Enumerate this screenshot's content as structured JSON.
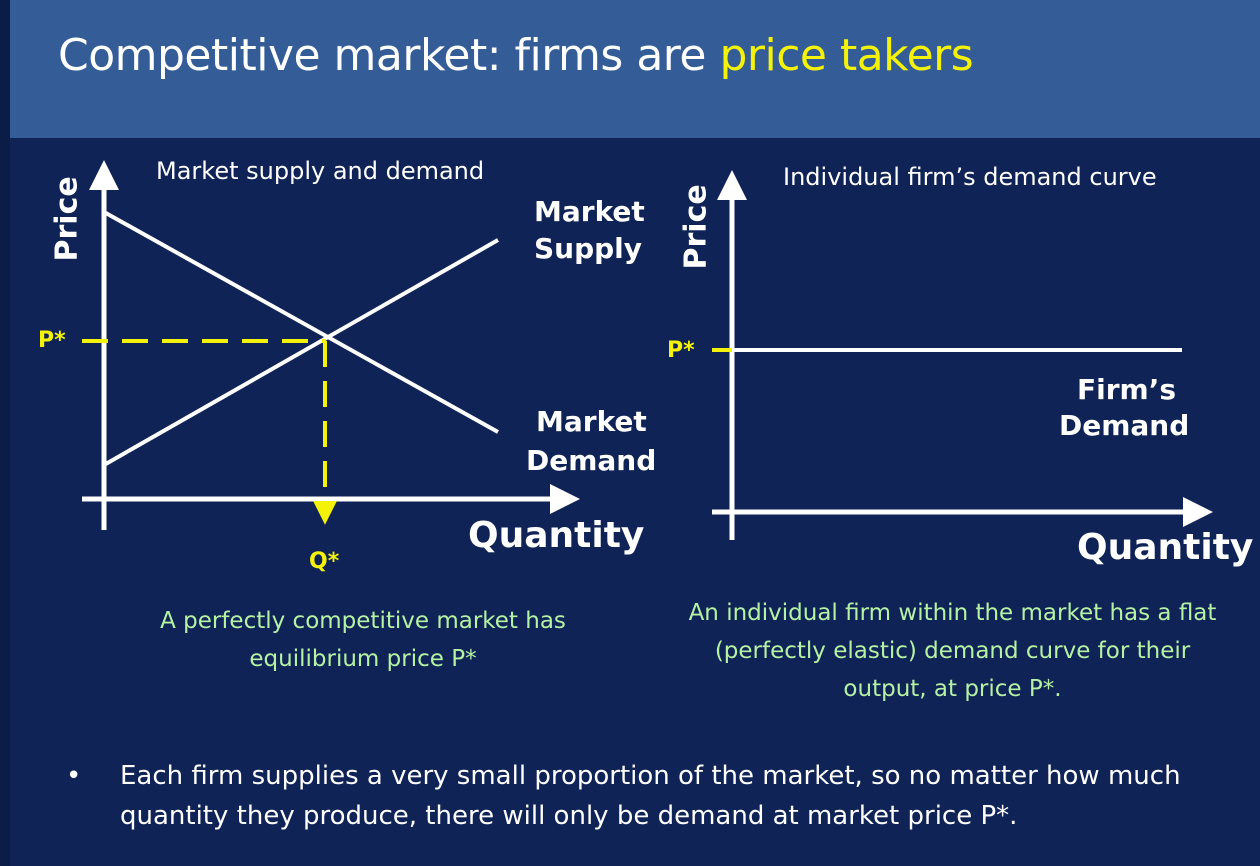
{
  "title": {
    "text_main": "Competitive market: firms are ",
    "text_highlight": "price takers"
  },
  "colors": {
    "header_bg": "#345d98",
    "slide_bg": "#0f2356",
    "highlight": "#f5f20a",
    "caption": "#b6f2a4",
    "line": "#ffffff"
  },
  "left_chart": {
    "heading": "Market supply and demand",
    "y_axis_label": "Price",
    "x_axis_label": "Quantity",
    "supply_label_line1": "Market",
    "supply_label_line2": "Supply",
    "demand_label_line1": "Market",
    "demand_label_line2": "Demand",
    "price_marker": "P*",
    "quantity_marker": "Q*",
    "caption": "A perfectly competitive market has equilibrium price P*"
  },
  "right_chart": {
    "heading": "Individual firm’s demand curve",
    "y_axis_label": "Price",
    "x_axis_label": "Quantity",
    "demand_label_line1": "Firm’s",
    "demand_label_line2": "Demand",
    "price_marker": "P*",
    "caption": "An individual firm within the market has a flat (perfectly elastic) demand curve for their output, at price P*."
  },
  "bullet": {
    "symbol": "•",
    "text": "Each firm supplies a very small proportion of the market, so no matter how much quantity they produce, there will only be demand at market price P*."
  }
}
